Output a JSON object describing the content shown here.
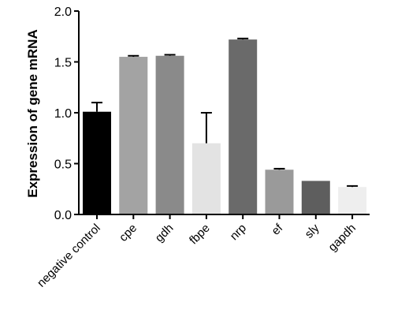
{
  "chart_data": {
    "type": "bar",
    "title": "",
    "xlabel": "",
    "ylabel": "Expression of gene mRNA",
    "ylim": [
      0,
      2.0
    ],
    "yticks": [
      "0.0",
      "0.5",
      "1.0",
      "1.5",
      "2.0"
    ],
    "grid": false,
    "categories": [
      "negative control",
      "cpe",
      "gdh",
      "fbpe",
      "nrp",
      "ef",
      "sly",
      "gapdh"
    ],
    "values": [
      1.01,
      1.55,
      1.56,
      0.7,
      1.72,
      0.44,
      0.33,
      0.27
    ],
    "errors": [
      0.09,
      0.01,
      0.01,
      0.3,
      0.01,
      0.01,
      0.0,
      0.01
    ],
    "colors": [
      "#000000",
      "#a3a3a3",
      "#8a8a8a",
      "#e3e3e3",
      "#6a6a6a",
      "#9a9a9a",
      "#5e5e5e",
      "#eeeeee"
    ]
  }
}
